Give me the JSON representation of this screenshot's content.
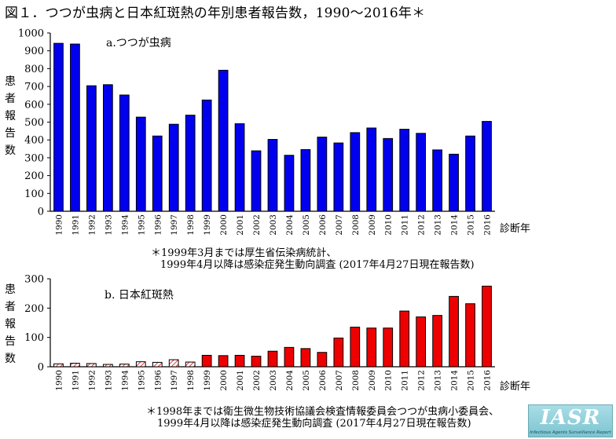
{
  "title": "図１．つつが虫病と日本紅斑熱の年別患者報告数，1990〜2016年＊",
  "chart_data": [
    {
      "type": "bar",
      "subtitle": "a.つつが虫病",
      "ylabel": "患者報告数",
      "xlabel": "診断年",
      "ylim": [
        0,
        1000
      ],
      "yticks": [
        0,
        100,
        200,
        300,
        400,
        500,
        600,
        700,
        800,
        900,
        1000
      ],
      "categories": [
        "1990",
        "1991",
        "1992",
        "1993",
        "1994",
        "1995",
        "1996",
        "1997",
        "1998",
        "1999",
        "2000",
        "2001",
        "2002",
        "2003",
        "2004",
        "2005",
        "2006",
        "2007",
        "2008",
        "2009",
        "2010",
        "2011",
        "2012",
        "2013",
        "2014",
        "2015",
        "2016"
      ],
      "values": [
        942,
        938,
        704,
        710,
        652,
        528,
        422,
        488,
        539,
        624,
        791,
        491,
        339,
        403,
        314,
        346,
        416,
        383,
        441,
        467,
        408,
        460,
        437,
        344,
        320,
        422,
        504
      ],
      "color": "#0000ee",
      "note_lines": [
        "＊1999年3月までは厚生省伝染病統計、",
        "1999年4月以降は感染症発生動向調査 (2017年4月27日現在報告数)"
      ]
    },
    {
      "type": "bar",
      "subtitle": "b. 日本紅斑熱",
      "ylabel": "患者報告数",
      "xlabel": "診断年",
      "ylim": [
        0,
        300
      ],
      "yticks": [
        0,
        100,
        200,
        300
      ],
      "categories": [
        "1990",
        "1991",
        "1992",
        "1993",
        "1994",
        "1995",
        "1996",
        "1997",
        "1998",
        "1999",
        "2000",
        "2001",
        "2002",
        "2003",
        "2004",
        "2005",
        "2006",
        "2007",
        "2008",
        "2009",
        "2010",
        "2011",
        "2012",
        "2013",
        "2014",
        "2015",
        "2016"
      ],
      "values": [
        10,
        12,
        11,
        8,
        9,
        17,
        15,
        24,
        16,
        39,
        38,
        39,
        36,
        53,
        66,
        62,
        49,
        98,
        135,
        132,
        132,
        190,
        170,
        175,
        240,
        215,
        275
      ],
      "hatched_until": "1998",
      "color": "#ee0000",
      "note_lines": [
        "＊1998年までは衛生微生物技術協議会検査情報委員会つつが虫病小委員会、",
        "1999年4月以降は感染症発生動向調査 (2017年4月27日現在報告数)"
      ]
    }
  ],
  "logo": {
    "text": "IASR",
    "sub": "Infectious Agents Surveillance Report"
  }
}
